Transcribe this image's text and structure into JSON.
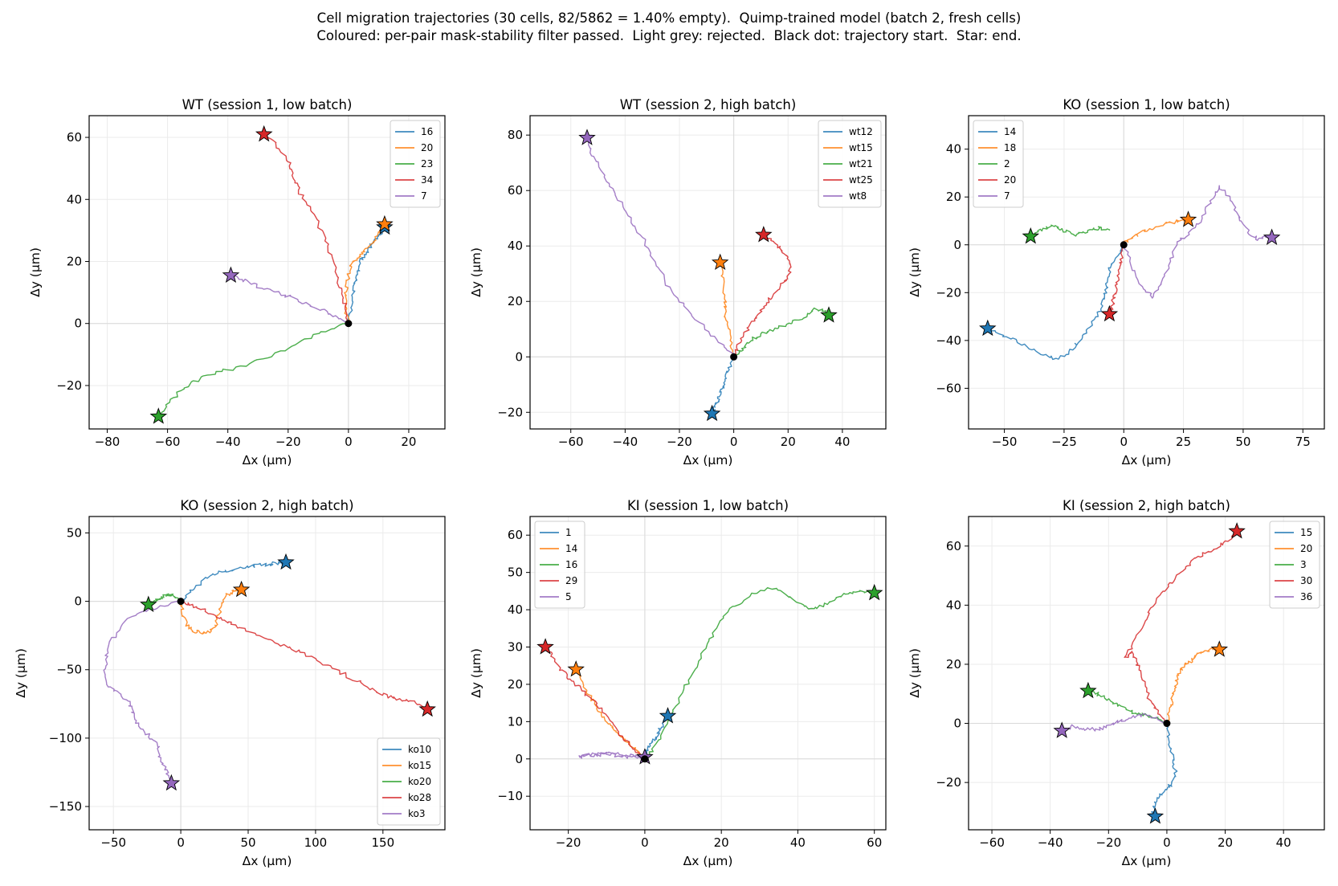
{
  "suptitle": {
    "line1": "Cell migration trajectories (30 cells, 82/5862 = 1.40% empty).  Quimp-trained model (batch 2, fresh cells)",
    "line2": "Coloured: per-pair mask-stability filter passed.  Light grey: rejected.  Black dot: trajectory start.  Star: end."
  },
  "colors": {
    "c0": "#1f77b4",
    "c1": "#ff7f0e",
    "c2": "#2ca02c",
    "c3": "#d62728",
    "c4": "#9467bd",
    "rejected": "#c8c8c8",
    "start_dot": "#000000",
    "grid": "#ebebeb",
    "zero_line": "#d9d9d9"
  },
  "chart_data": [
    {
      "type": "line",
      "title": "WT (session 1, low batch)",
      "xlabel": "Δx (µm)",
      "ylabel": "Δy (µm)",
      "xlim": [
        -86,
        32
      ],
      "ylim": [
        -34,
        67
      ],
      "xticks": [
        -80,
        -60,
        -40,
        -20,
        0,
        20
      ],
      "yticks": [
        -20,
        0,
        20,
        40,
        60
      ],
      "grid": true,
      "legend": "top-right",
      "series": [
        {
          "name": "16",
          "x": [
            0,
            1,
            2,
            3,
            4,
            6,
            8,
            10,
            12
          ],
          "y": [
            0,
            6,
            12,
            16,
            20,
            23,
            26,
            28,
            31
          ]
        },
        {
          "name": "20",
          "x": [
            0,
            -1,
            -1,
            0,
            1,
            3,
            5,
            8,
            10,
            12
          ],
          "y": [
            0,
            5,
            10,
            15,
            19,
            21,
            23,
            26,
            29,
            32
          ]
        },
        {
          "name": "23",
          "x": [
            0,
            -10,
            -20,
            -30,
            -40,
            -48,
            -55,
            -60,
            -63
          ],
          "y": [
            0,
            -3,
            -8,
            -12,
            -15,
            -17,
            -21,
            -26,
            -30
          ]
        },
        {
          "name": "34",
          "x": [
            0,
            -1,
            -3,
            -5,
            -8,
            -12,
            -16,
            -18,
            -20,
            -24,
            -28
          ],
          "y": [
            0,
            6,
            12,
            20,
            28,
            36,
            42,
            47,
            52,
            58,
            61
          ]
        },
        {
          "name": "7",
          "x": [
            0,
            -4,
            -8,
            -13,
            -18,
            -24,
            -30,
            -35,
            -39
          ],
          "y": [
            0,
            2,
            4,
            6,
            8,
            10,
            12,
            14,
            15.5
          ]
        }
      ]
    },
    {
      "type": "line",
      "title": "WT (session 2, high batch)",
      "xlabel": "Δx (µm)",
      "ylabel": "Δy (µm)",
      "xlim": [
        -75,
        56
      ],
      "ylim": [
        -26,
        87
      ],
      "xticks": [
        -60,
        -40,
        -20,
        0,
        20,
        40
      ],
      "yticks": [
        -20,
        0,
        20,
        40,
        60,
        80
      ],
      "grid": true,
      "legend": "top-right",
      "series": [
        {
          "name": "wt12",
          "x": [
            0,
            -2,
            -3,
            -4,
            -5,
            -6,
            -7,
            -8
          ],
          "y": [
            0,
            -4,
            -8,
            -11,
            -13,
            -16,
            -18,
            -20.5
          ]
        },
        {
          "name": "wt15",
          "x": [
            0,
            -1,
            -2,
            -3,
            -3,
            -4,
            -5
          ],
          "y": [
            0,
            5,
            10,
            15,
            20,
            27,
            34
          ]
        },
        {
          "name": "wt21",
          "x": [
            0,
            3,
            6,
            10,
            15,
            20,
            25,
            30,
            33,
            35
          ],
          "y": [
            0,
            3,
            6,
            8,
            10,
            12,
            14,
            17,
            17,
            15
          ]
        },
        {
          "name": "wt25",
          "x": [
            0,
            2,
            5,
            8,
            12,
            15,
            19,
            21,
            20,
            17,
            14,
            11
          ],
          "y": [
            0,
            5,
            10,
            14,
            19,
            23,
            27,
            32,
            36,
            39,
            42,
            44
          ]
        },
        {
          "name": "wt8",
          "x": [
            0,
            -3,
            -8,
            -15,
            -22,
            -28,
            -33,
            -38,
            -43,
            -48,
            -52,
            -54
          ],
          "y": [
            0,
            4,
            8,
            15,
            22,
            32,
            42,
            50,
            58,
            66,
            73,
            79
          ]
        }
      ]
    },
    {
      "type": "line",
      "title": "KO (session 1, low batch)",
      "xlabel": "Δx (µm)",
      "ylabel": "Δy (µm)",
      "xlim": [
        -65,
        84
      ],
      "ylim": [
        -77,
        54
      ],
      "xticks": [
        -50,
        -25,
        0,
        25,
        50,
        75
      ],
      "yticks": [
        -60,
        -40,
        -20,
        0,
        20,
        40
      ],
      "grid": true,
      "legend": "top-left",
      "series": [
        {
          "name": "14",
          "x": [
            0,
            -3,
            -6,
            -7,
            -8,
            -10,
            -14,
            -18,
            -22,
            -28,
            -34,
            -42,
            -50,
            -57
          ],
          "y": [
            0,
            -5,
            -10,
            -16,
            -22,
            -28,
            -34,
            -40,
            -44,
            -48,
            -46,
            -42,
            -38,
            -35
          ]
        },
        {
          "name": "18",
          "x": [
            0,
            3,
            7,
            12,
            18,
            23,
            27
          ],
          "y": [
            0,
            3,
            5,
            7,
            9,
            10,
            10.5
          ]
        },
        {
          "name": "2",
          "x": [
            -6,
            -10,
            -15,
            -20,
            -25,
            -30,
            -35,
            -39
          ],
          "y": [
            6,
            7,
            6,
            4,
            6,
            8,
            6,
            3.5
          ]
        },
        {
          "name": "20",
          "x": [
            0,
            -1,
            -2,
            -3,
            -4,
            -5,
            -6
          ],
          "y": [
            0,
            -6,
            -12,
            -17,
            -22,
            -26,
            -29
          ]
        },
        {
          "name": "7",
          "x": [
            0,
            4,
            8,
            12,
            16,
            20,
            22,
            26,
            32,
            36,
            40,
            44,
            48,
            52,
            56,
            60,
            62
          ],
          "y": [
            0,
            -10,
            -18,
            -22,
            -16,
            -6,
            0,
            4,
            10,
            18,
            24,
            20,
            12,
            6,
            2,
            4,
            3
          ]
        }
      ]
    },
    {
      "type": "line",
      "title": "KO (session 2, high batch)",
      "xlabel": "Δx (µm)",
      "ylabel": "Δy (µm)",
      "xlim": [
        -68,
        196
      ],
      "ylim": [
        -167,
        62
      ],
      "xticks": [
        -50,
        0,
        50,
        100,
        150
      ],
      "yticks": [
        -150,
        -100,
        -50,
        0,
        50
      ],
      "grid": true,
      "legend": "bottom-right",
      "series": [
        {
          "name": "ko10",
          "x": [
            0,
            8,
            16,
            25,
            35,
            45,
            55,
            65,
            72,
            78
          ],
          "y": [
            0,
            8,
            15,
            20,
            22,
            24,
            26,
            27,
            28,
            28.5
          ]
        },
        {
          "name": "ko15",
          "x": [
            0,
            2,
            5,
            10,
            16,
            22,
            26,
            28,
            30,
            34,
            38,
            42,
            45
          ],
          "y": [
            0,
            -10,
            -18,
            -22,
            -23,
            -22,
            -18,
            -10,
            -2,
            4,
            7,
            8,
            8.5
          ]
        },
        {
          "name": "ko20",
          "x": [
            0,
            -4,
            -8,
            -12,
            -16,
            -20,
            -24
          ],
          "y": [
            0,
            3,
            5,
            4,
            2,
            0,
            -2.5
          ]
        },
        {
          "name": "ko28",
          "x": [
            0,
            10,
            20,
            30,
            40,
            55,
            70,
            85,
            100,
            115,
            130,
            145,
            155,
            165,
            175,
            183
          ],
          "y": [
            0,
            -4,
            -8,
            -12,
            -18,
            -24,
            -30,
            -36,
            -42,
            -50,
            -58,
            -66,
            -70,
            -72,
            -74,
            -79
          ]
        },
        {
          "name": "ko3",
          "x": [
            0,
            -15,
            -30,
            -45,
            -55,
            -56,
            -55,
            -48,
            -40,
            -36,
            -32,
            -24,
            -18,
            -15,
            -10,
            -7
          ],
          "y": [
            0,
            -4,
            -8,
            -18,
            -35,
            -50,
            -60,
            -66,
            -72,
            -80,
            -90,
            -98,
            -104,
            -115,
            -125,
            -133
          ]
        }
      ]
    },
    {
      "type": "line",
      "title": "KI (session 1, low batch)",
      "xlabel": "Δx (µm)",
      "ylabel": "Δy (µm)",
      "xlim": [
        -30,
        63
      ],
      "ylim": [
        -19,
        65
      ],
      "xticks": [
        -20,
        0,
        20,
        40,
        60
      ],
      "yticks": [
        -10,
        0,
        10,
        20,
        30,
        40,
        50,
        60
      ],
      "grid": true,
      "legend": "top-left",
      "series": [
        {
          "name": "1",
          "x": [
            0,
            1,
            2,
            3,
            4,
            5,
            6
          ],
          "y": [
            0,
            3,
            5,
            6,
            8,
            10,
            11.5
          ]
        },
        {
          "name": "14",
          "x": [
            0,
            -2,
            -4,
            -6,
            -8,
            -10,
            -12,
            -14,
            -16,
            -18
          ],
          "y": [
            0,
            2,
            4,
            6,
            8,
            10,
            13,
            16,
            20,
            24
          ]
        },
        {
          "name": "16",
          "x": [
            0,
            3,
            6,
            9,
            12,
            15,
            18,
            22,
            28,
            34,
            40,
            44,
            48,
            52,
            56,
            60
          ],
          "y": [
            0,
            4,
            10,
            16,
            22,
            28,
            34,
            40,
            44,
            46,
            42,
            40,
            42,
            44,
            45,
            44.5
          ]
        },
        {
          "name": "29",
          "x": [
            0,
            -3,
            -6,
            -9,
            -12,
            -15,
            -18,
            -21,
            -24,
            -26
          ],
          "y": [
            0,
            3,
            6,
            10,
            14,
            17,
            20,
            23,
            27,
            30
          ]
        },
        {
          "name": "5",
          "x": [
            0,
            -3,
            -6,
            -9,
            -12,
            -15,
            -17,
            -16,
            -12,
            -8,
            -4,
            0
          ],
          "y": [
            0,
            1,
            1,
            2,
            1,
            1,
            0.5,
            1,
            1.5,
            1,
            0.5,
            0.5
          ]
        }
      ]
    },
    {
      "type": "line",
      "title": "KI (session 2, high batch)",
      "xlabel": "Δx (µm)",
      "ylabel": "Δy (µm)",
      "xlim": [
        -68,
        54
      ],
      "ylim": [
        -36,
        70
      ],
      "xticks": [
        -60,
        -40,
        -20,
        0,
        20,
        40
      ],
      "yticks": [
        -20,
        0,
        20,
        40,
        60
      ],
      "grid": true,
      "legend": "top-right",
      "series": [
        {
          "name": "15",
          "x": [
            0,
            1,
            2,
            3,
            2,
            0,
            -2,
            -4,
            -5,
            -4
          ],
          "y": [
            0,
            -6,
            -12,
            -16,
            -20,
            -22,
            -24,
            -27,
            -30,
            -31.5
          ]
        },
        {
          "name": "20",
          "x": [
            0,
            1,
            2,
            3,
            4,
            6,
            8,
            10,
            12,
            15,
            18
          ],
          "y": [
            0,
            5,
            9,
            13,
            17,
            20,
            21,
            23,
            24,
            25,
            25
          ]
        },
        {
          "name": "3",
          "x": [
            0,
            -4,
            -8,
            -12,
            -16,
            -20,
            -24,
            -27
          ],
          "y": [
            0,
            2,
            3,
            4,
            6,
            8,
            10,
            11
          ]
        },
        {
          "name": "30",
          "x": [
            0,
            -3,
            -6,
            -8,
            -10,
            -12,
            -14,
            -10,
            -6,
            -2,
            2,
            6,
            10,
            14,
            18,
            22,
            24
          ],
          "y": [
            0,
            4,
            8,
            14,
            20,
            24,
            22,
            30,
            38,
            44,
            48,
            52,
            56,
            58,
            60,
            63,
            65
          ]
        },
        {
          "name": "36",
          "x": [
            0,
            -4,
            -8,
            -12,
            -16,
            -20,
            -24,
            -28,
            -32,
            -36
          ],
          "y": [
            0,
            2,
            3,
            2,
            1,
            -1,
            -2,
            -2,
            -1,
            -2.5
          ]
        }
      ]
    }
  ]
}
